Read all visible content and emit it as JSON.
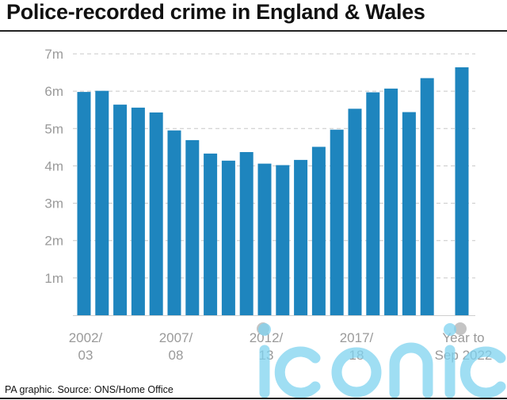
{
  "title": "Police-recorded crime in England & Wales",
  "source": "PA graphic. Source: ONS/Home Office",
  "watermark": "iconic",
  "colors": {
    "bar": "#1e85be",
    "grid": "#c8c8c8",
    "axis_text": "#9a9a9a",
    "watermark": "#7fd3f0"
  },
  "chart_data": {
    "type": "bar",
    "title": "Police-recorded crime in England & Wales",
    "xlabel": "",
    "ylabel": "",
    "categories": [
      "2002/03",
      "2003/04",
      "2004/05",
      "2005/06",
      "2006/07",
      "2007/08",
      "2008/09",
      "2009/10",
      "2010/11",
      "2011/12",
      "2012/13",
      "2013/14",
      "2014/15",
      "2015/16",
      "2016/17",
      "2017/18",
      "2018/19",
      "2019/20",
      "2020/21",
      "2021/22",
      "Year to Sep 2022"
    ],
    "values": [
      5.98,
      6.01,
      5.64,
      5.56,
      5.43,
      4.95,
      4.69,
      4.33,
      4.14,
      4.37,
      4.06,
      4.02,
      4.16,
      4.51,
      4.97,
      5.53,
      5.97,
      6.07,
      5.44,
      6.35,
      6.64
    ],
    "unit": "m",
    "ylim": [
      0,
      7
    ],
    "yticks": [
      "1m",
      "2m",
      "3m",
      "4m",
      "5m",
      "6m",
      "7m"
    ],
    "xtick_labels": [
      {
        "lines": [
          "2002/",
          "03"
        ],
        "index": 0
      },
      {
        "lines": [
          "2007/",
          "08"
        ],
        "index": 5
      },
      {
        "lines": [
          "2012/",
          "13"
        ],
        "index": 10
      },
      {
        "lines": [
          "2017/",
          "18"
        ],
        "index": 15
      },
      {
        "lines": [
          "Year to",
          "Sep 2022"
        ],
        "index": 20
      }
    ],
    "grid": true,
    "legend": "none"
  }
}
